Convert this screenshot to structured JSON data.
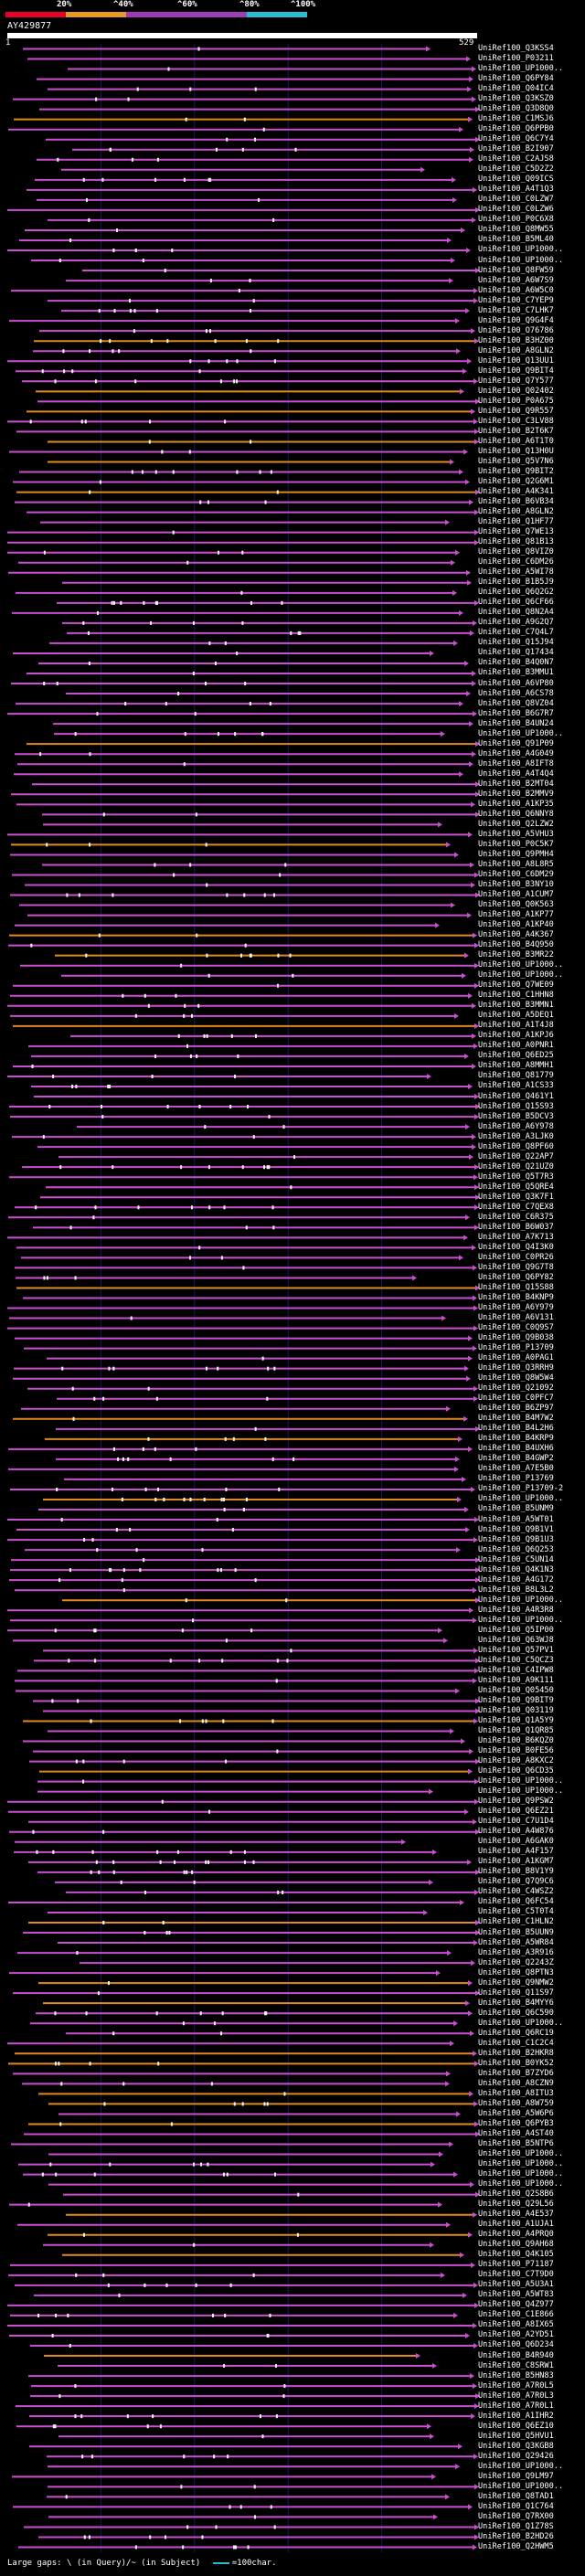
{
  "legend": {
    "ticks": [
      "20%",
      "^40%",
      "^60%",
      "^80%",
      "^100%"
    ],
    "colors": [
      "#e8002a",
      "#e89b22",
      "#a03ab2",
      "#9e3db4",
      "#2bbcd4"
    ]
  },
  "query": {
    "name": "AY429877",
    "start_label": "1",
    "end_label": "529"
  },
  "colors": {
    "hit_line": "#c94fcf",
    "hit_line_alt": "#e08a1e",
    "marker": "#ffffff",
    "grid": "#1a1a5a"
  },
  "hits": [
    "UniRef100_Q3KSS4",
    "UniRef100_P03211",
    "UniRef100_UP1000..",
    "UniRef100_Q6PY84",
    "UniRef100_Q04IC4",
    "UniRef100_Q3KSZ0",
    "UniRef100_Q3D8Q0",
    "UniRef100_C1MSJ6",
    "UniRef100_Q6PPB0",
    "UniRef100_Q6C7Y4",
    "UniRef100_B2I907",
    "UniRef100_C2AJS8",
    "UniRef100_C5D2Z2",
    "UniRef100_Q09ICS",
    "UniRef100_A4T1Q3",
    "UniRef100_C0LZW7",
    "UniRef100_C0LZW6",
    "UniRef100_P0C6X8",
    "UniRef100_Q8MW55",
    "UniRef100_B5ML40",
    "UniRef100_UP1000..",
    "UniRef100_UP1000..",
    "UniRef100_Q8FW59",
    "UniRef100_A6W7S9",
    "UniRef100_A6W5C0",
    "UniRef100_C7YEP9",
    "UniRef100_C7LHK7",
    "UniRef100_Q9G4F4",
    "UniRef100_O76786",
    "UniRef100_B3HZ00",
    "UniRef100_A8GLN2",
    "UniRef100_Q13UU1",
    "UniRef100_Q9BIT4",
    "UniRef100_Q7Y577",
    "UniRef100_Q02402",
    "UniRef100_P0A675",
    "UniRef100_Q9R557",
    "UniRef100_C3LV88",
    "UniRef100_B2T6K7",
    "UniRef100_A6T1T0",
    "UniRef100_Q13H0U",
    "UniRef100_Q5V7N6",
    "UniRef100_Q9BIT2",
    "UniRef100_Q2G6M1",
    "UniRef100_A4K341",
    "UniRef100_B6VB34",
    "UniRef100_A8GLN2",
    "UniRef100_Q1HF77",
    "UniRef100_Q7WE13",
    "UniRef100_Q81B13",
    "UniRef100_Q8VIZ0",
    "UniRef100_C6DM26",
    "UniRef100_A5WI78",
    "UniRef100_B1B5J9",
    "UniRef100_Q6Q2G2",
    "UniRef100_Q6CF66",
    "UniRef100_Q8N2A4",
    "UniRef100_A9G2Q7",
    "UniRef100_C7Q4L7",
    "UniRef100_Q15J94",
    "UniRef100_Q17434",
    "UniRef100_B4Q0N7",
    "UniRef100_B3MMU1",
    "UniRef100_A6VP80",
    "UniRef100_A6CS78",
    "UniRef100_Q8VZ04",
    "UniRef100_B6G7R7",
    "UniRef100_B4UN24",
    "UniRef100_UP1000..",
    "UniRef100_Q91P09",
    "UniRef100_A4G049",
    "UniRef100_A8IFT8",
    "UniRef100_A4T4Q4",
    "UniRef100_B2MT04",
    "UniRef100_B2MMV9",
    "UniRef100_A1KP35",
    "UniRef100_Q6NNY8",
    "UniRef100_Q2LZW2",
    "UniRef100_A5VHU3",
    "UniRef100_P0C5K7",
    "UniRef100_Q9PMH4",
    "UniRef100_A8L8R5",
    "UniRef100_C6DM29",
    "UniRef100_B3NY10",
    "UniRef100_A1CUM7",
    "UniRef100_Q0K563",
    "UniRef100_A1KP77",
    "UniRef100_A1KP40",
    "UniRef100_A4K367",
    "UniRef100_B4Q950",
    "UniRef100_B3MR22",
    "UniRef100_UP1000..",
    "UniRef100_UP1000..",
    "UniRef100_Q7WE09",
    "UniRef100_C1HHN8",
    "UniRef100_B3MMN1",
    "UniRef100_A5DEQ1",
    "UniRef100_A1T4J8",
    "UniRef100_A1KPJ6",
    "UniRef100_A0PNR1",
    "UniRef100_Q6ED25",
    "UniRef100_A8MMH1",
    "UniRef100_Q81779",
    "UniRef100_A1CS33",
    "UniRef100_Q461Y1",
    "UniRef100_Q15S93",
    "UniRef100_B5DCV3",
    "UniRef100_A6Y978",
    "UniRef100_A3LJK0",
    "UniRef100_Q8PF60",
    "UniRef100_Q22AP7",
    "UniRef100_Q21UZ0",
    "UniRef100_Q5T7R3",
    "UniRef100_Q5QRE4",
    "UniRef100_Q3K7F1",
    "UniRef100_C7QEX8",
    "UniRef100_C6R375",
    "UniRef100_B6W037",
    "UniRef100_A7K713",
    "UniRef100_Q4I3K0",
    "UniRef100_C0PR26",
    "UniRef100_Q9G7T8",
    "UniRef100_Q6PY82",
    "UniRef100_Q15S88",
    "UniRef100_B4KNP9",
    "UniRef100_A6Y979",
    "UniRef100_A6V131",
    "UniRef100_C0Q9S7",
    "UniRef100_Q9B038",
    "UniRef100_P13709",
    "UniRef100_A0PAG1",
    "UniRef100_Q3RRH9",
    "UniRef100_Q8W5W4",
    "UniRef100_Q21092",
    "UniRef100_C0PFC7",
    "UniRef100_B6ZP97",
    "UniRef100_B4M7W2",
    "UniRef100_B4L2H6",
    "UniRef100_B4KRP9",
    "UniRef100_B4UXH6",
    "UniRef100_B4GWP2",
    "UniRef100_A7E5B0",
    "UniRef100_P13769",
    "UniRef100_P13709-2",
    "UniRef100_UP1000..",
    "UniRef100_B5UNM9",
    "UniRef100_A5WT01",
    "UniRef100_Q9B1V1",
    "UniRef100_Q9B1U3",
    "UniRef100_Q6Q253",
    "UniRef100_C5UN14",
    "UniRef100_Q4K1N3",
    "UniRef100_A4G172",
    "UniRef100_B8L3L2",
    "UniRef100_UP1000..",
    "UniRef100_A4R3R8",
    "UniRef100_UP1000..",
    "UniRef100_Q5IP00",
    "UniRef100_Q63WJ8",
    "UniRef100_Q57PV1",
    "UniRef100_C5QCZ3",
    "UniRef100_C4IPW8",
    "UniRef100_A9K111",
    "UniRef100_Q05450",
    "UniRef100_Q9BIT9",
    "UniRef100_Q03119",
    "UniRef100_Q1A5Y9",
    "UniRef100_Q1QR85",
    "UniRef100_B6KQZ0",
    "UniRef100_B0FE56",
    "UniRef100_A8KXC2",
    "UniRef100_Q6CD35",
    "UniRef100_UP1000..",
    "UniRef100_UP1000..",
    "UniRef100_Q9PSW2",
    "UniRef100_Q6EZ21",
    "UniRef100_C7U1D4",
    "UniRef100_A4W876",
    "UniRef100_A6GAK0",
    "UniRef100_A4F157",
    "UniRef100_A1KGM7",
    "UniRef100_B8V1Y9",
    "UniRef100_Q7Q9C6",
    "UniRef100_C4WSZ2",
    "UniRef100_Q6FC54",
    "UniRef100_C5T0T4",
    "UniRef100_C1HLN2",
    "UniRef100_B5UUN9",
    "UniRef100_A5WR84",
    "UniRef100_A3R916",
    "UniRef100_Q2243Z",
    "UniRef100_Q8PTN3",
    "UniRef100_Q9NMW2",
    "UniRef100_Q11S97",
    "UniRef100_B4MYY6",
    "UniRef100_Q6C590",
    "UniRef100_UP1000..",
    "UniRef100_Q6RC19",
    "UniRef100_C1C2C4",
    "UniRef100_B2HKR8",
    "UniRef100_B0YK52",
    "UniRef100_B7ZYD6",
    "UniRef100_A8CZN9",
    "UniRef100_A8ITU3",
    "UniRef100_A8W759",
    "UniRef100_A5W6P6",
    "UniRef100_Q6PYB3",
    "UniRef100_A4ST40",
    "UniRef100_B5NTP6",
    "UniRef100_UP1000..",
    "UniRef100_UP1000..",
    "UniRef100_UP1000..",
    "UniRef100_UP1000..",
    "UniRef100_Q2S8B6",
    "UniRef100_Q29L56",
    "UniRef100_A4E537",
    "UniRef100_A1UJA1",
    "UniRef100_A4PRQ0",
    "UniRef100_Q9AH68",
    "UniRef100_Q4K105",
    "UniRef100_P71187",
    "UniRef100_C7T9D0",
    "UniRef100_A5U3A1",
    "UniRef100_A5WT83",
    "UniRef100_Q4Z977",
    "UniRef100_C1E866",
    "UniRef100_A8IX65",
    "UniRef100_A2YD51",
    "UniRef100_Q6D234",
    "UniRef100_B4R940",
    "UniRef100_C8SRW1",
    "UniRef100_B5HN83",
    "UniRef100_A7R0L5",
    "UniRef100_A7R0L3",
    "UniRef100_A7R0L1",
    "UniRef100_A1IHR2",
    "UniRef100_Q6EZ10",
    "UniRef100_Q5HVU1",
    "UniRef100_Q3KGB8",
    "UniRef100_Q29426",
    "UniRef100_UP1000..",
    "UniRef100_Q9LM97",
    "UniRef100_UP1000..",
    "UniRef100_Q8TAD1",
    "UniRef100_Q1C764",
    "UniRef100_Q7RX00",
    "UniRef100_Q1Z78S",
    "UniRef100_B2HD26",
    "UniRef100_Q2HWM5"
  ],
  "footer": {
    "text": "Large gaps: \\ (in Query)/~ (in Subject)",
    "scale_text": "=100char."
  }
}
